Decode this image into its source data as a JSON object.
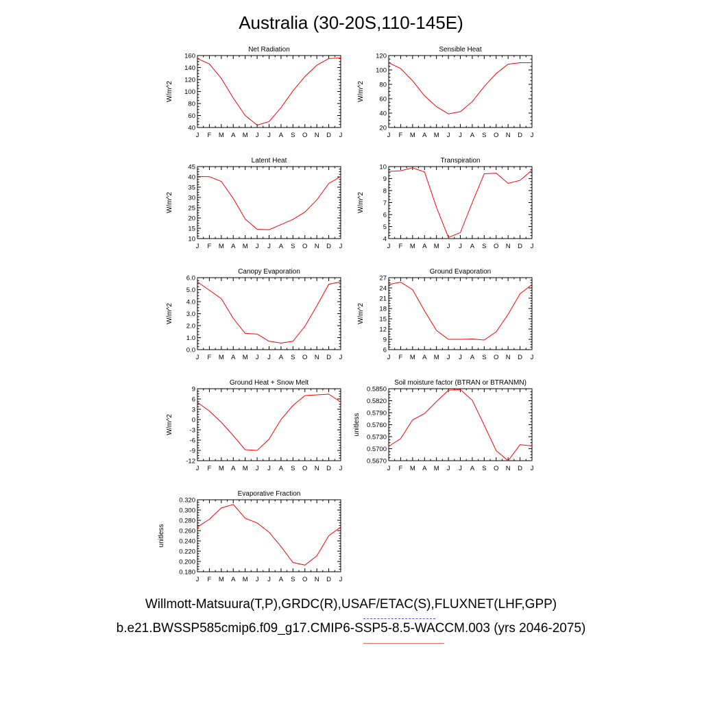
{
  "title": "Australia (30-20S,110-145E)",
  "legend": {
    "obs_label": "Willmott-Matsuura(T,P),GRDC(R),USAF/ETAC(S),FLUXNET(LHF,GPP)",
    "model_label": "b.e21.BWSSP585cmip6.f09_g17.CMIP6-SSP5-8.5-WACCM.003 (yrs 2046-2075)",
    "obs_color": "#4a4af0",
    "model_color": "#f06a6a"
  },
  "line_color": "#ff0000",
  "chart_data": [
    {
      "type": "line",
      "title": "Net Radiation",
      "ylabel": "W/m^2",
      "categories": [
        "J",
        "F",
        "M",
        "A",
        "M",
        "J",
        "J",
        "A",
        "S",
        "O",
        "N",
        "D",
        "J"
      ],
      "values": [
        155,
        146,
        122,
        89,
        60,
        44,
        50,
        73,
        101,
        125,
        144,
        155,
        156
      ],
      "ylim": [
        40,
        160
      ],
      "yticks": [
        "160",
        "140",
        "120",
        "100",
        "80",
        "60",
        "40"
      ]
    },
    {
      "type": "line",
      "title": "Sensible Heat",
      "ylabel": "W/m^2",
      "categories": [
        "J",
        "F",
        "M",
        "A",
        "M",
        "J",
        "J",
        "A",
        "S",
        "O",
        "N",
        "D",
        "J"
      ],
      "values": [
        110,
        102,
        85,
        64,
        49,
        39,
        42,
        56,
        77,
        95,
        108,
        110,
        110
      ],
      "ylim": [
        20,
        120
      ],
      "yticks": [
        "120",
        "100",
        "80",
        "60",
        "40",
        "20"
      ]
    },
    {
      "type": "line",
      "title": "Latent Heat",
      "ylabel": "W/m^2",
      "categories": [
        "J",
        "F",
        "M",
        "A",
        "M",
        "J",
        "J",
        "A",
        "S",
        "O",
        "N",
        "D",
        "J"
      ],
      "values": [
        40.2,
        40.1,
        37.8,
        29.5,
        19.5,
        14.5,
        14.3,
        16.8,
        19.3,
        22.9,
        28.8,
        36.8,
        40.2
      ],
      "ylim": [
        10,
        45
      ],
      "yticks": [
        "45",
        "40",
        "35",
        "30",
        "25",
        "20",
        "15",
        "10"
      ]
    },
    {
      "type": "line",
      "title": "Transpiration",
      "ylabel": "W/m^2",
      "categories": [
        "J",
        "F",
        "M",
        "A",
        "M",
        "J",
        "J",
        "A",
        "S",
        "O",
        "N",
        "D",
        "J"
      ],
      "values": [
        9.6,
        9.65,
        9.9,
        9.55,
        6.6,
        4.1,
        4.5,
        7.0,
        9.4,
        9.45,
        8.6,
        8.85,
        9.7
      ],
      "ylim": [
        4,
        10
      ],
      "yticks": [
        "10",
        "9",
        "8",
        "7",
        "6",
        "5",
        "4"
      ]
    },
    {
      "type": "line",
      "title": "Canopy Evaporation",
      "ylabel": "W/m^2",
      "categories": [
        "J",
        "F",
        "M",
        "A",
        "M",
        "J",
        "J",
        "A",
        "S",
        "O",
        "N",
        "D",
        "J"
      ],
      "values": [
        5.65,
        4.95,
        4.25,
        2.6,
        1.35,
        1.3,
        0.7,
        0.55,
        0.7,
        1.95,
        3.65,
        5.45,
        5.65
      ],
      "ylim": [
        0,
        6
      ],
      "yticks": [
        "6.0",
        "5.0",
        "4.0",
        "3.0",
        "2.0",
        "1.0",
        "0.0"
      ]
    },
    {
      "type": "line",
      "title": "Ground Evaporation",
      "ylabel": "W/m^2",
      "categories": [
        "J",
        "F",
        "M",
        "A",
        "M",
        "J",
        "J",
        "A",
        "S",
        "O",
        "N",
        "D",
        "J"
      ],
      "values": [
        25.0,
        25.7,
        23.5,
        17.3,
        11.6,
        9.0,
        9.0,
        9.1,
        8.8,
        11.2,
        16.3,
        22.3,
        25.0
      ],
      "ylim": [
        6,
        27
      ],
      "yticks": [
        "27",
        "24",
        "21",
        "18",
        "15",
        "12",
        "9",
        "6"
      ]
    },
    {
      "type": "line",
      "title": "Ground Heat + Snow Melt",
      "ylabel": "W/m^2",
      "categories": [
        "J",
        "F",
        "M",
        "A",
        "M",
        "J",
        "J",
        "A",
        "S",
        "O",
        "N",
        "D",
        "J"
      ],
      "values": [
        5.0,
        2.5,
        -0.8,
        -4.7,
        -8.8,
        -9.0,
        -5.7,
        0.0,
        4.1,
        7.0,
        7.2,
        7.4,
        5.1
      ],
      "ylim": [
        -12,
        9
      ],
      "yticks": [
        "9",
        "6",
        "3",
        "0",
        "-3",
        "-6",
        "-9",
        "-12"
      ]
    },
    {
      "type": "line",
      "title": "Soil moisture factor (BTRAN or BTRANMN)",
      "ylabel": "unitless",
      "categories": [
        "J",
        "F",
        "M",
        "A",
        "M",
        "J",
        "J",
        "A",
        "S",
        "O",
        "N",
        "D",
        "J"
      ],
      "values": [
        0.5706,
        0.5725,
        0.5772,
        0.5788,
        0.5818,
        0.5846,
        0.5848,
        0.5821,
        0.5759,
        0.5695,
        0.567,
        0.571,
        0.5707
      ],
      "ylim": [
        0.567,
        0.585
      ],
      "yticks": [
        "0.5850",
        "0.5820",
        "0.5790",
        "0.5760",
        "0.5730",
        "0.5700",
        "0.5670"
      ]
    },
    {
      "type": "line",
      "title": "Evaporative Fraction",
      "ylabel": "unitless",
      "categories": [
        "J",
        "F",
        "M",
        "A",
        "M",
        "J",
        "J",
        "A",
        "S",
        "O",
        "N",
        "D",
        "J"
      ],
      "values": [
        0.267,
        0.282,
        0.304,
        0.311,
        0.284,
        0.275,
        0.257,
        0.229,
        0.198,
        0.193,
        0.211,
        0.25,
        0.267
      ],
      "ylim": [
        0.18,
        0.32
      ],
      "yticks": [
        "0.320",
        "0.300",
        "0.280",
        "0.260",
        "0.240",
        "0.220",
        "0.200",
        "0.180"
      ]
    }
  ]
}
